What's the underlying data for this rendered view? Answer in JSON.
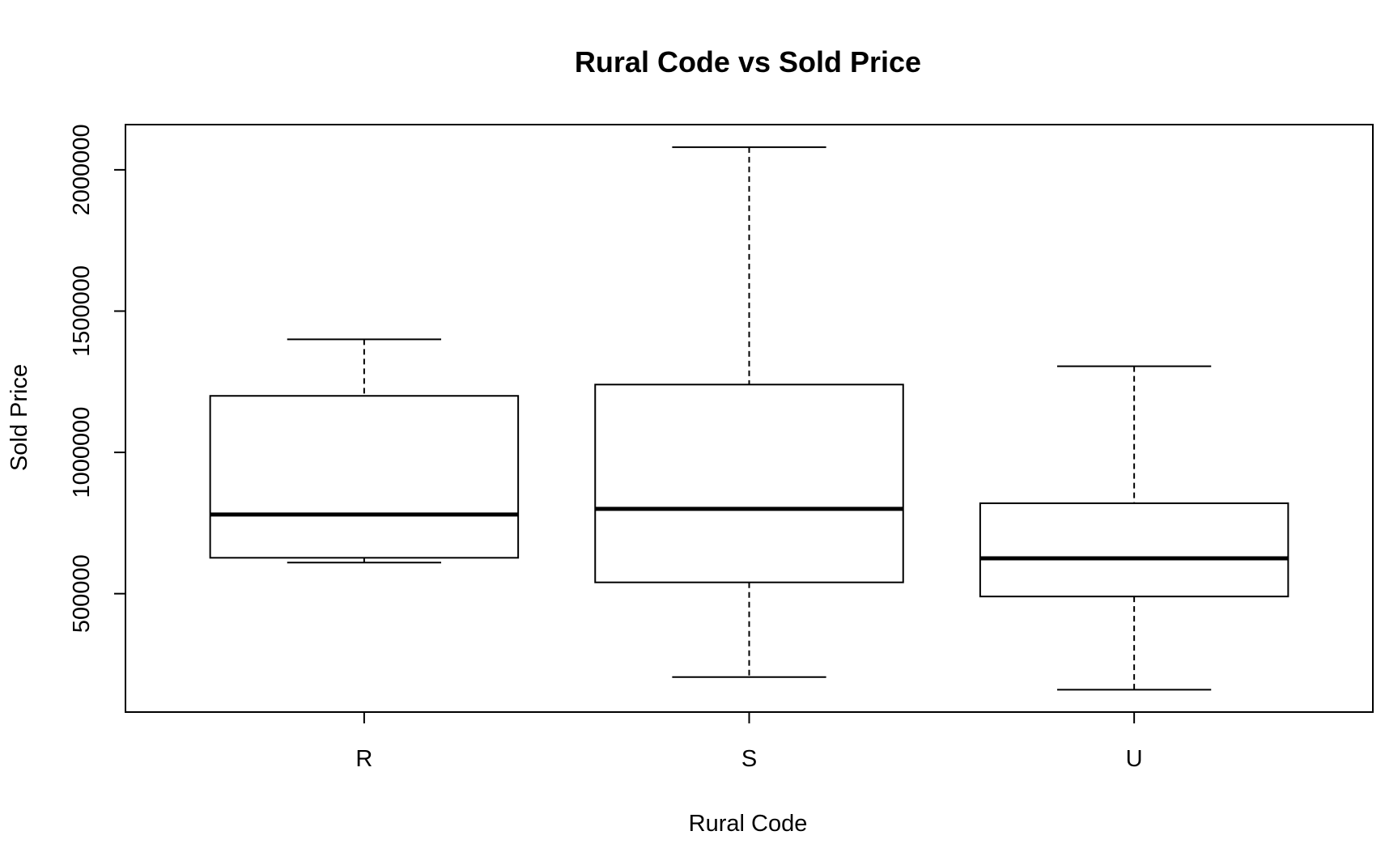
{
  "chart_data": {
    "type": "boxplot",
    "title": "Rural Code vs Sold Price",
    "xlabel": "Rural Code",
    "ylabel": "Sold Price",
    "categories": [
      "R",
      "S",
      "U"
    ],
    "boxes": [
      {
        "category": "R",
        "whisker_low": 610000,
        "q1": 627000,
        "median": 780000,
        "q3": 1200000,
        "whisker_high": 1400000
      },
      {
        "category": "S",
        "whisker_low": 205000,
        "q1": 540000,
        "median": 800000,
        "q3": 1240000,
        "whisker_high": 2080000
      },
      {
        "category": "U",
        "whisker_low": 160000,
        "q1": 490000,
        "median": 625000,
        "q3": 820000,
        "whisker_high": 1305000
      }
    ],
    "y_ticks": [
      500000,
      1000000,
      1500000,
      2000000
    ],
    "y_tick_labels": [
      "500000",
      "1000000",
      "1500000",
      "2000000"
    ],
    "ylim": [
      81000,
      2160000
    ],
    "grid": false,
    "colors": {
      "box_fill": "#ffffff",
      "stroke": "#000000"
    }
  }
}
